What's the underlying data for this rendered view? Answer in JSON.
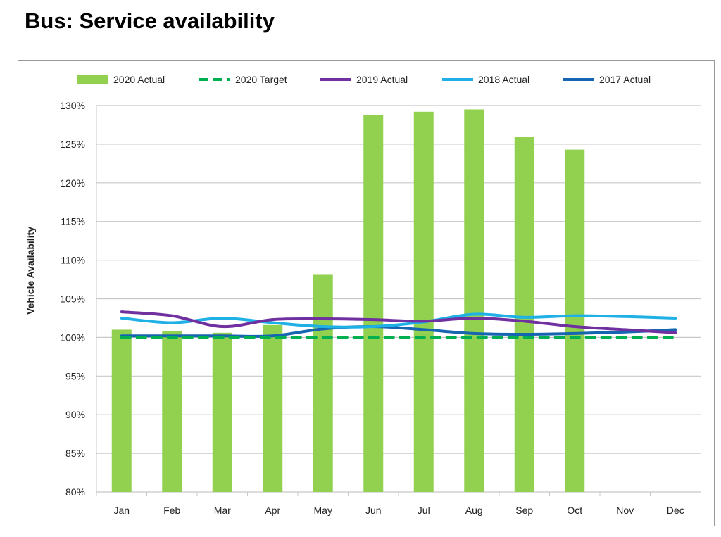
{
  "title": "Bus: Service availability",
  "chart_data": {
    "type": "bar+line",
    "title": "Bus: Service availability",
    "xlabel": "",
    "ylabel": "Vehicle Availability",
    "ylim": [
      80,
      130
    ],
    "yticks": [
      80,
      85,
      90,
      95,
      100,
      105,
      110,
      115,
      120,
      125,
      130
    ],
    "ytick_labels": [
      "80%",
      "85%",
      "90%",
      "95%",
      "100%",
      "105%",
      "110%",
      "115%",
      "120%",
      "125%",
      "130%"
    ],
    "categories": [
      "Jan",
      "Feb",
      "Mar",
      "Apr",
      "May",
      "Jun",
      "Jul",
      "Aug",
      "Sep",
      "Oct",
      "Nov",
      "Dec"
    ],
    "grid": "horizontal",
    "legend": "top",
    "series": [
      {
        "name": "2020 Actual",
        "kind": "bar",
        "color": "#92d050",
        "values": [
          101.0,
          100.8,
          100.6,
          101.6,
          108.1,
          128.8,
          129.2,
          129.5,
          125.9,
          124.3,
          null,
          null
        ]
      },
      {
        "name": "2020 Target",
        "kind": "dashed-line",
        "color": "#00b050",
        "values": [
          100,
          100,
          100,
          100,
          100,
          100,
          100,
          100,
          100,
          100,
          100,
          100
        ]
      },
      {
        "name": "2019 Actual",
        "kind": "line",
        "color": "#7030a0",
        "values": [
          103.3,
          102.8,
          101.4,
          102.3,
          102.4,
          102.3,
          102.1,
          102.5,
          102.1,
          101.4,
          101.0,
          100.6
        ]
      },
      {
        "name": "2018 Actual",
        "kind": "line",
        "color": "#1fb0e6",
        "values": [
          102.5,
          101.9,
          102.5,
          101.9,
          101.4,
          101.4,
          102.0,
          103.0,
          102.6,
          102.8,
          102.7,
          102.5
        ]
      },
      {
        "name": "2017 Actual",
        "kind": "line",
        "color": "#1565b0",
        "values": [
          100.2,
          100.2,
          100.2,
          100.2,
          101.1,
          101.4,
          101.0,
          100.5,
          100.4,
          100.5,
          100.7,
          101.0
        ]
      }
    ]
  }
}
